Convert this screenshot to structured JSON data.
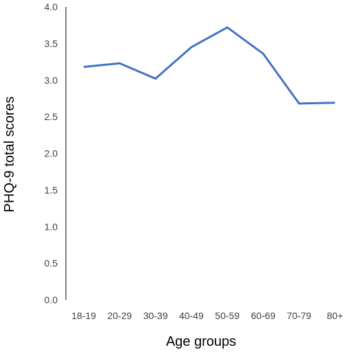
{
  "chart_data": {
    "type": "line",
    "title": "",
    "xlabel": "Age groups",
    "ylabel": "PHQ-9 total scores",
    "categories": [
      "18-19",
      "20-29",
      "30-39",
      "40-49",
      "50-59",
      "60-69",
      "70-79",
      "80+"
    ],
    "series": [
      {
        "values": [
          3.18,
          3.23,
          3.02,
          3.45,
          3.72,
          3.36,
          2.68,
          2.69
        ]
      }
    ],
    "ylim": [
      0,
      4.0
    ],
    "yticks": [
      "0.0",
      "0.5",
      "1.0",
      "1.5",
      "2.0",
      "2.5",
      "3.0",
      "3.5",
      "4.0"
    ],
    "grid": false,
    "legend": "none",
    "colors": {
      "line": "#4472C4",
      "axis": "#000000",
      "text": "#404040"
    }
  }
}
